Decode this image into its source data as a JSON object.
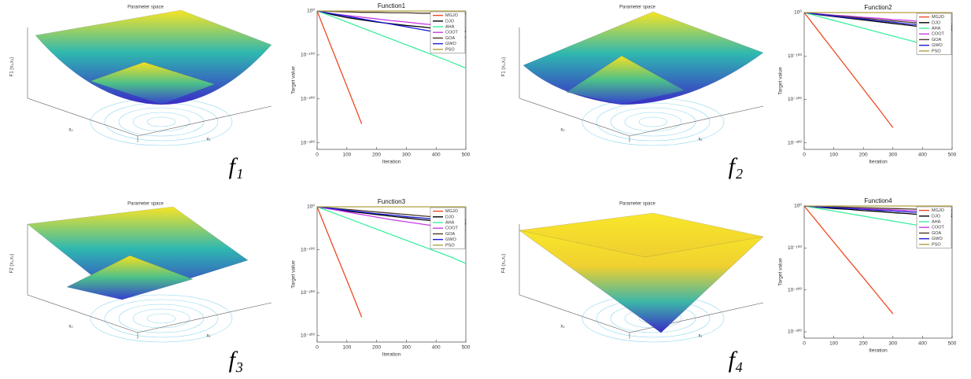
{
  "chart_data": [
    {
      "type": "line",
      "title": "Function1",
      "xlabel": "Iteration",
      "ylabel": "Target value",
      "yscale": "log",
      "legend": "upper right",
      "x": [
        0,
        50,
        100,
        150,
        200,
        250,
        300,
        350,
        400,
        450,
        500
      ],
      "xlim": [
        0,
        500
      ],
      "xticks": [
        0,
        100,
        200,
        300,
        400,
        500
      ],
      "ylim": [
        1e-315,
        1
      ],
      "yticks": [
        {
          "value": 1,
          "label": "10⁰"
        },
        {
          "value": 1e-100,
          "label": "10⁻¹⁰⁰"
        },
        {
          "value": 1e-200,
          "label": "10⁻²⁰⁰"
        },
        {
          "value": 1e-300,
          "label": "10⁻³⁰⁰"
        }
      ],
      "series": [
        {
          "name": "MGJO",
          "color": "#ee4a22",
          "values": [
            1,
            1e-86,
            1e-171,
            1e-257,
            null,
            null,
            null,
            null,
            null,
            null,
            null
          ]
        },
        {
          "name": "DJO",
          "color": "#000000",
          "values": [
            1,
            1e-08,
            1e-15,
            1e-20,
            1e-25,
            1e-29,
            1e-33,
            1e-36,
            1e-40,
            1e-43,
            1e-46
          ]
        },
        {
          "name": "AHA",
          "color": "#3cf0a0",
          "values": [
            1,
            1e-12,
            1e-25,
            1e-38,
            1e-51,
            1e-64,
            1e-77,
            1e-90,
            1e-103,
            1e-116,
            1e-130
          ]
        },
        {
          "name": "COOT",
          "color": "#c83ce6",
          "values": [
            1,
            1e-06,
            1e-10,
            1e-14,
            1e-18,
            1e-22,
            1e-25,
            1e-29,
            1e-32,
            1e-35,
            1e-38
          ]
        },
        {
          "name": "GOA",
          "color": "#4a3a2a",
          "values": [
            1,
            0.1,
            0.01,
            0.001,
            0.001,
            0.0001,
            0.0001,
            1e-05,
            1e-05,
            1e-06,
            1e-06
          ]
        },
        {
          "name": "GWO",
          "color": "#1a1ad2",
          "values": [
            1,
            1e-06,
            1e-12,
            1e-18,
            1e-24,
            1e-30,
            1e-36,
            1e-42,
            1e-48,
            1e-54,
            1e-60
          ]
        },
        {
          "name": "PSO",
          "color": "#b0a040",
          "values": [
            1,
            1,
            1,
            1,
            1,
            1,
            1,
            1,
            1,
            1,
            1
          ]
        }
      ]
    },
    {
      "type": "line",
      "title": "Function2",
      "xlabel": "Iteration",
      "ylabel": "Target value",
      "yscale": "log",
      "legend": "upper right",
      "x": [
        0,
        50,
        100,
        150,
        200,
        250,
        300,
        350,
        400,
        450,
        500
      ],
      "xlim": [
        0,
        500
      ],
      "xticks": [
        0,
        100,
        200,
        300,
        400,
        500
      ],
      "ylim": [
        1e-315,
        1
      ],
      "yticks": [
        {
          "value": 1,
          "label": "10⁰"
        },
        {
          "value": 1e-100,
          "label": "10⁻¹⁰⁰"
        },
        {
          "value": 1e-200,
          "label": "10⁻²⁰⁰"
        },
        {
          "value": 1e-300,
          "label": "10⁻³⁰⁰"
        }
      ],
      "series": [
        {
          "name": "MGJO",
          "color": "#ee4a22",
          "values": [
            1,
            1e-44,
            1e-88,
            1e-132,
            1e-176,
            1e-220,
            1e-265,
            null,
            null,
            null,
            null
          ]
        },
        {
          "name": "DJO",
          "color": "#000000",
          "values": [
            1,
            1e-05,
            1e-09,
            1e-13,
            1e-17,
            1e-21,
            1e-25,
            1e-29,
            1e-33,
            1e-37,
            1e-40
          ]
        },
        {
          "name": "AHA",
          "color": "#3cf0a0",
          "values": [
            1,
            1e-09,
            1e-18,
            1e-27,
            1e-36,
            1e-45,
            1e-54,
            1e-63,
            1e-72,
            1e-81,
            1e-90
          ]
        },
        {
          "name": "COOT",
          "color": "#c83ce6",
          "values": [
            1,
            0.001,
            1e-06,
            1e-08,
            1e-11,
            1e-13,
            1e-16,
            1e-18,
            1e-21,
            1e-23,
            1e-25
          ]
        },
        {
          "name": "GOA",
          "color": "#4a3a2a",
          "values": [
            1,
            0.0001,
            1e-07,
            1e-10,
            1e-13,
            1e-16,
            1e-19,
            1e-22,
            1e-25,
            1e-28,
            1e-30
          ]
        },
        {
          "name": "GWO",
          "color": "#1a1ad2",
          "values": [
            1,
            0.0001,
            1e-08,
            1e-12,
            1e-15,
            1e-19,
            1e-22,
            1e-26,
            1e-29,
            1e-32,
            1e-35
          ]
        },
        {
          "name": "PSO",
          "color": "#b0a040",
          "values": [
            1,
            1,
            1,
            1,
            1,
            1,
            1,
            1,
            1,
            1,
            1
          ]
        }
      ]
    },
    {
      "type": "line",
      "title": "Function3",
      "xlabel": "Iteration",
      "ylabel": "Target value",
      "yscale": "log",
      "legend": "upper right",
      "x": [
        0,
        50,
        100,
        150,
        200,
        250,
        300,
        350,
        400,
        450,
        500
      ],
      "xlim": [
        0,
        500
      ],
      "xticks": [
        0,
        100,
        200,
        300,
        400,
        500
      ],
      "ylim": [
        1e-315,
        1
      ],
      "yticks": [
        {
          "value": 1,
          "label": "10⁰"
        },
        {
          "value": 1e-100,
          "label": "10⁻¹⁰⁰"
        },
        {
          "value": 1e-200,
          "label": "10⁻²⁰⁰"
        },
        {
          "value": 1e-300,
          "label": "10⁻³⁰⁰"
        }
      ],
      "series": [
        {
          "name": "MGJO",
          "color": "#ee4a22",
          "values": [
            1,
            1e-86,
            1e-171,
            1e-257,
            null,
            null,
            null,
            null,
            null,
            null,
            null
          ]
        },
        {
          "name": "DJO",
          "color": "#000000",
          "values": [
            1,
            1e-05,
            1e-10,
            1e-14,
            1e-18,
            1e-22,
            1e-26,
            1e-30,
            1e-33,
            1e-37,
            1e-40
          ]
        },
        {
          "name": "AHA",
          "color": "#3cf0a0",
          "values": [
            1,
            1e-13,
            1e-26,
            1e-39,
            1e-52,
            1e-65,
            1e-78,
            1e-91,
            1e-104,
            1e-117,
            1e-132
          ]
        },
        {
          "name": "COOT",
          "color": "#c83ce6",
          "values": [
            1,
            1e-06,
            1e-12,
            1e-18,
            1e-24,
            1e-30,
            1e-35,
            1e-40,
            1e-45,
            1e-50,
            1e-55
          ]
        },
        {
          "name": "GOA",
          "color": "#4a3a2a",
          "values": [
            1,
            0.001,
            1e-06,
            1e-09,
            1e-12,
            1e-15,
            1e-18,
            1e-21,
            1e-24,
            1e-27,
            1e-30
          ]
        },
        {
          "name": "GWO",
          "color": "#1a1ad2",
          "values": [
            1,
            0.0001,
            1e-08,
            1e-12,
            1e-16,
            1e-19,
            1e-23,
            1e-26,
            1e-29,
            1e-32,
            1e-35
          ]
        },
        {
          "name": "PSO",
          "color": "#b0a040",
          "values": [
            1,
            1,
            1,
            1,
            1,
            1,
            1,
            1,
            1,
            1,
            1
          ]
        }
      ]
    },
    {
      "type": "line",
      "title": "Function4",
      "xlabel": "Iteration",
      "ylabel": "Target value",
      "yscale": "log",
      "legend": "upper right",
      "x": [
        0,
        50,
        100,
        150,
        200,
        250,
        300,
        350,
        400,
        450,
        500
      ],
      "xlim": [
        0,
        500
      ],
      "xticks": [
        0,
        100,
        200,
        300,
        400,
        500
      ],
      "ylim": [
        1e-315,
        1
      ],
      "yticks": [
        {
          "value": 1,
          "label": "10⁰"
        },
        {
          "value": 1e-100,
          "label": "10⁻¹⁰⁰"
        },
        {
          "value": 1e-200,
          "label": "10⁻²⁰⁰"
        },
        {
          "value": 1e-300,
          "label": "10⁻³⁰⁰"
        }
      ],
      "series": [
        {
          "name": "MGJO",
          "color": "#ee4a22",
          "values": [
            1,
            1e-43,
            1e-86,
            1e-129,
            1e-171,
            1e-214,
            1e-257,
            null,
            null,
            null,
            null
          ]
        },
        {
          "name": "DJO",
          "color": "#000000",
          "values": [
            1,
            0.001,
            1e-06,
            1e-08,
            1e-11,
            1e-13,
            1e-16,
            1e-18,
            1e-21,
            1e-23,
            1e-25
          ]
        },
        {
          "name": "AHA",
          "color": "#3cf0a0",
          "values": [
            1,
            1e-06,
            1e-12,
            1e-18,
            1e-24,
            1e-30,
            1e-36,
            1e-42,
            1e-48,
            1e-54,
            1e-60
          ]
        },
        {
          "name": "COOT",
          "color": "#c83ce6",
          "values": [
            1,
            0.01,
            0.001,
            1e-05,
            1e-06,
            1e-08,
            1e-09,
            1e-11,
            1e-12,
            1e-14,
            1e-15
          ]
        },
        {
          "name": "GOA",
          "color": "#4a3a2a",
          "values": [
            1,
            0.1,
            0.01,
            0.001,
            0.0001,
            1e-05,
            1e-06,
            1e-07,
            1e-08,
            1e-09,
            1e-10
          ]
        },
        {
          "name": "GWO",
          "color": "#1a1ad2",
          "values": [
            1,
            0.01,
            0.0001,
            1e-06,
            1e-08,
            1e-10,
            1e-12,
            1e-14,
            1e-16,
            1e-18,
            1e-20
          ]
        },
        {
          "name": "PSO",
          "color": "#b0a040",
          "values": [
            1,
            1,
            1,
            1,
            1,
            1,
            1,
            1,
            1,
            1,
            1
          ]
        }
      ]
    }
  ],
  "surface_plots": [
    {
      "title": "Parameter space",
      "zlabel": "F1 (x₁,x₂)",
      "xlabel": "x₁",
      "ylabel": "x₂"
    },
    {
      "title": "Parameter space",
      "zlabel": "F1 (x₁,x₂)",
      "xlabel": "x₁",
      "ylabel": "x₂"
    },
    {
      "title": "Parameter space",
      "zlabel": "F2 (x₁,x₂)",
      "xlabel": "x₁",
      "ylabel": "x₂"
    },
    {
      "title": "Parameter space",
      "zlabel": "F4 (x₁,x₂)",
      "xlabel": "x₁",
      "ylabel": "x₂"
    }
  ],
  "subfigure_labels": [
    "f₁",
    "f₂",
    "f₃",
    "f₄"
  ]
}
